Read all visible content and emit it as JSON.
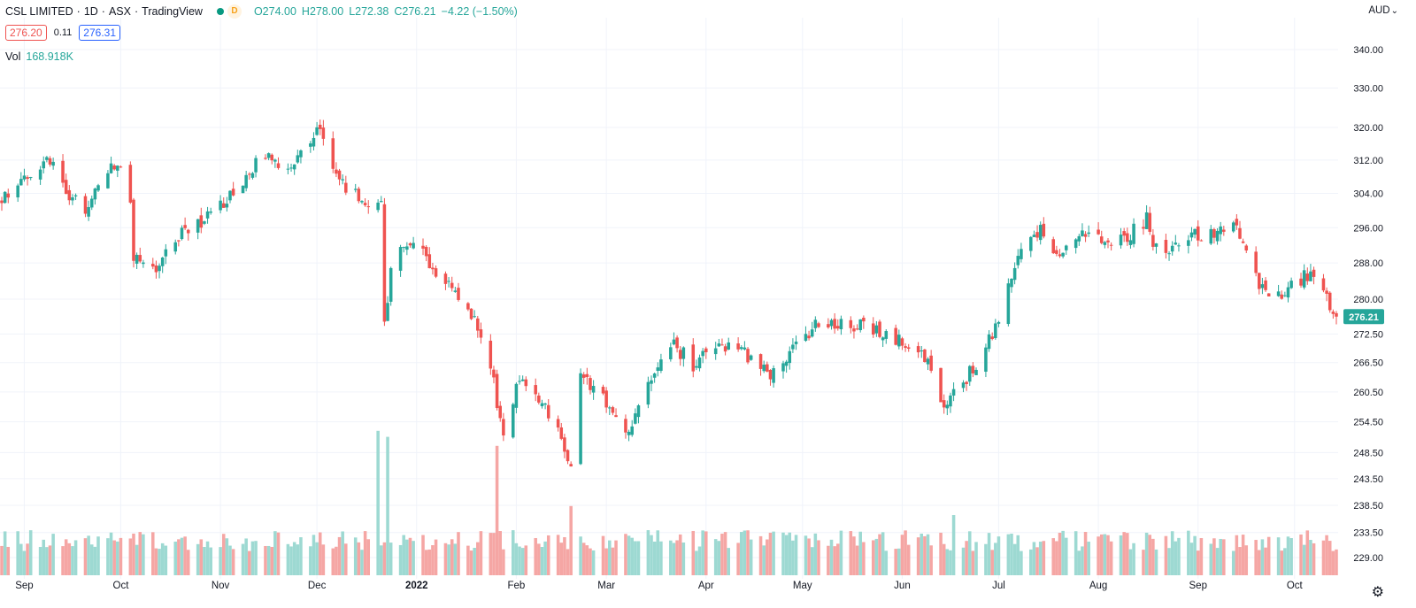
{
  "legend": {
    "symbol": "CSL LIMITED",
    "interval": "1D",
    "exchange": "ASX",
    "source": "TradingView",
    "sep": "·",
    "d_badge": "D",
    "open": "O274.00",
    "high": "H278.00",
    "low": "L272.38",
    "close": "C276.21",
    "change": "−4.22 (−1.50%)",
    "bid": "276.20",
    "spread": "0.11",
    "ask": "276.31",
    "vol_label": "Vol",
    "vol_value": "168.918K"
  },
  "axis": {
    "currency": "AUD",
    "currency_arrow": "⌄",
    "last_price_label": "276.21",
    "settings_icon": "gear-icon"
  },
  "colors": {
    "up": "#26a69a",
    "down": "#ef5350",
    "vol_up": "#9dd9d2",
    "vol_down": "#f5a6a4",
    "grid": "#f0f3fa",
    "text": "#131722",
    "green_dot": "#089981",
    "orange": "#f7b731"
  },
  "chart_data": {
    "type": "candlestick",
    "title": "CSL LIMITED · 1D · ASX",
    "y_scale": "log",
    "ylim": [
      227.0,
      348.0
    ],
    "yticks": [
      "340.00",
      "330.00",
      "320.00",
      "312.00",
      "304.00",
      "296.00",
      "288.00",
      "280.00",
      "272.50",
      "266.50",
      "260.50",
      "254.50",
      "248.50",
      "243.50",
      "238.50",
      "233.50",
      "229.00"
    ],
    "x_labels": [
      "Sep",
      "Oct",
      "Nov",
      "Dec",
      "2022",
      "Feb",
      "Mar",
      "Apr",
      "May",
      "Jun",
      "Jul",
      "Aug",
      "Sep",
      "Oct"
    ],
    "last_price": 276.21,
    "control_points": [
      [
        "2021-08-25",
        302
      ],
      [
        "2021-09-01",
        308
      ],
      [
        "2021-09-10",
        312
      ],
      [
        "2021-09-15",
        303
      ],
      [
        "2021-09-20",
        300
      ],
      [
        "2021-09-27",
        310
      ],
      [
        "2021-09-30",
        311
      ],
      [
        "2021-10-04",
        301
      ],
      [
        "2021-10-05",
        289
      ],
      [
        "2021-10-12",
        287
      ],
      [
        "2021-10-20",
        295
      ],
      [
        "2021-10-28",
        298
      ],
      [
        "2021-11-05",
        304
      ],
      [
        "2021-11-15",
        314
      ],
      [
        "2021-11-18",
        312
      ],
      [
        "2021-11-24",
        311
      ],
      [
        "2021-12-01",
        320
      ],
      [
        "2021-12-06",
        311
      ],
      [
        "2021-12-10",
        305
      ],
      [
        "2021-12-15",
        303
      ],
      [
        "2021-12-21",
        301
      ],
      [
        "2021-12-22",
        274
      ],
      [
        "2021-12-24",
        287
      ],
      [
        "2021-12-31",
        294
      ],
      [
        "2022-01-06",
        285
      ],
      [
        "2022-01-12",
        282
      ],
      [
        "2022-01-19",
        276
      ],
      [
        "2022-01-25",
        262
      ],
      [
        "2022-01-28",
        252
      ],
      [
        "2022-02-02",
        264
      ],
      [
        "2022-02-09",
        258
      ],
      [
        "2022-02-15",
        252
      ],
      [
        "2022-02-18",
        245
      ],
      [
        "2022-02-21",
        264
      ],
      [
        "2022-02-28",
        259
      ],
      [
        "2022-03-08",
        252
      ],
      [
        "2022-03-15",
        264
      ],
      [
        "2022-03-21",
        271
      ],
      [
        "2022-03-28",
        266
      ],
      [
        "2022-04-05",
        270
      ],
      [
        "2022-04-14",
        268
      ],
      [
        "2022-04-21",
        264
      ],
      [
        "2022-04-29",
        270
      ],
      [
        "2022-05-06",
        275
      ],
      [
        "2022-05-13",
        275
      ],
      [
        "2022-05-20",
        274
      ],
      [
        "2022-05-27",
        272
      ],
      [
        "2022-06-03",
        271
      ],
      [
        "2022-06-07",
        270
      ],
      [
        "2022-06-13",
        258
      ],
      [
        "2022-06-20",
        262
      ],
      [
        "2022-06-27",
        270
      ],
      [
        "2022-07-01",
        276
      ],
      [
        "2022-07-08",
        290
      ],
      [
        "2022-07-14",
        295
      ],
      [
        "2022-07-20",
        290
      ],
      [
        "2022-07-27",
        295
      ],
      [
        "2022-08-03",
        293
      ],
      [
        "2022-08-10",
        294
      ],
      [
        "2022-08-16",
        298
      ],
      [
        "2022-08-19",
        291
      ],
      [
        "2022-08-22",
        291
      ],
      [
        "2022-08-29",
        294
      ],
      [
        "2022-09-07",
        295
      ],
      [
        "2022-09-12",
        297
      ],
      [
        "2022-09-19",
        285
      ],
      [
        "2022-09-23",
        280
      ],
      [
        "2022-09-30",
        283
      ],
      [
        "2022-10-07",
        286
      ],
      [
        "2022-10-10",
        281
      ],
      [
        "2022-10-14",
        276.21
      ]
    ],
    "volume_ylim": [
      0,
      500000
    ],
    "volume_spikes": [
      [
        "2021-12-20",
        480000
      ],
      [
        "2021-12-23",
        460000
      ],
      [
        "2022-01-26",
        430000
      ],
      [
        "2022-02-18",
        230000
      ],
      [
        "2022-06-17",
        200000
      ]
    ]
  }
}
